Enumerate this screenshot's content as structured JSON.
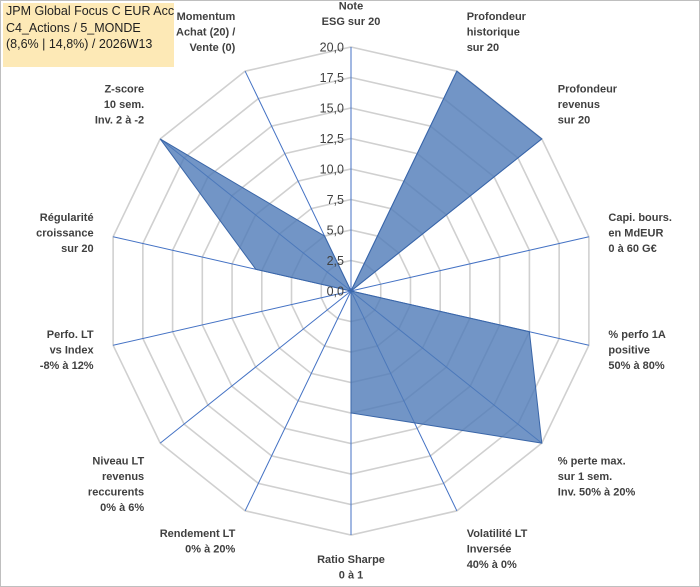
{
  "title_box": {
    "line1": "JPM Global Focus C EUR Acc",
    "line2": "C4_Actions / 5_MONDE",
    "line3": "(8,6% | 14,8%) / 2026W13"
  },
  "colors": {
    "fill": "#4f7ab8",
    "fill_opacity": 0.8,
    "spoke": "#4472c4",
    "ring": "#d0d0d0",
    "title_bg": "#fde9b6"
  },
  "chart_data": {
    "type": "radar",
    "rmax": 20,
    "ticks": [
      "0,0",
      "2,5",
      "5,0",
      "7,5",
      "10,0",
      "12,5",
      "15,0",
      "17,5",
      "20,0"
    ],
    "categories": [
      [
        "Note",
        "ESG sur 20"
      ],
      [
        "Profondeur",
        "historique",
        "sur 20"
      ],
      [
        "Profondeur",
        "revenus",
        "sur 20"
      ],
      [
        "Capi. bours.",
        "en MdEUR",
        "0 à 60 G€"
      ],
      [
        "% perfo 1A",
        "positive",
        "50% à 80%"
      ],
      [
        "% perte max.",
        "sur 1 sem.",
        "Inv. 50% à 20%"
      ],
      [
        "Volatilité LT",
        "Inversée",
        "40% à 0%"
      ],
      [
        "Ratio Sharpe",
        "0 à 1"
      ],
      [
        "Rendement LT",
        "0% à 20%"
      ],
      [
        "Niveau LT",
        "revenus",
        "reccurents",
        "0% à 6%"
      ],
      [
        "Perfo. LT",
        "vs Index",
        "-8% à 12%"
      ],
      [
        "Régularité",
        "croissance",
        "sur 20"
      ],
      [
        "Z-score",
        "10 sem.",
        "Inv. 2 à -2"
      ],
      [
        "Momentum",
        "Achat (20) /",
        "Vente (0)"
      ]
    ],
    "values": [
      0,
      20,
      20,
      0,
      15,
      20,
      12,
      10,
      0,
      0,
      0,
      8,
      20,
      5
    ],
    "grid": true
  }
}
